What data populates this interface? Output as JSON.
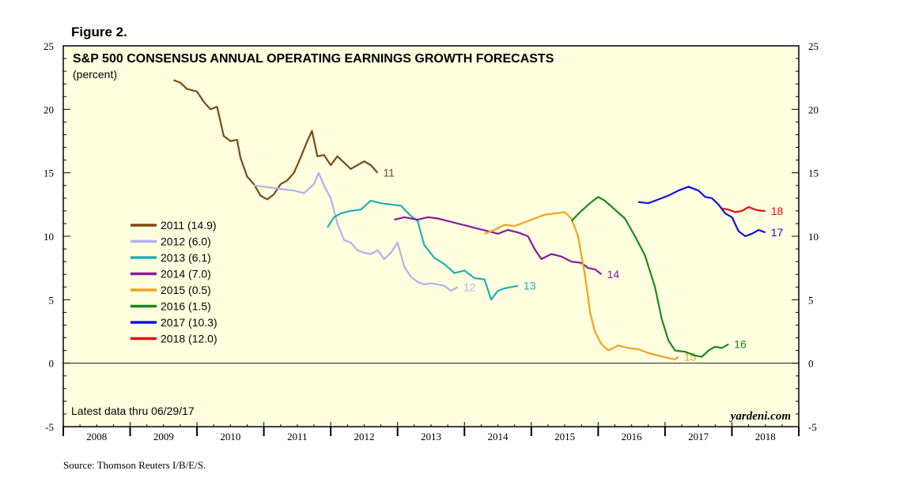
{
  "figure_label": "Figure 2.",
  "source": "Source: Thomson Reuters I/B/E/S.",
  "latest_note": "Latest data thru 06/29/17",
  "brand": "yardeni.com",
  "chart_data": {
    "type": "line",
    "title": "S&P 500 CONSENSUS ANNUAL OPERATING EARNINGS GROWTH FORECASTS",
    "subtitle": "(percent)",
    "xlim": [
      2008,
      2019
    ],
    "ylim": [
      -5,
      25
    ],
    "yticks": [
      -5,
      0,
      5,
      10,
      15,
      20,
      25
    ],
    "xticks": [
      "2008",
      "2009",
      "2010",
      "2011",
      "2012",
      "2013",
      "2014",
      "2015",
      "2016",
      "2017",
      "2018"
    ],
    "zero_line": true,
    "legend_placement": "left",
    "colors": {
      "background": "#ffffe0",
      "2011": "#7b4a12",
      "2012": "#b0b0f0",
      "2013": "#1fb0b0",
      "2014": "#8a1a9a",
      "2015": "#f5a020",
      "2016": "#1a8a1a",
      "2017": "#1010e0",
      "2018": "#e01010"
    },
    "series": [
      {
        "name": "2011 (14.9)",
        "end_label": "11",
        "points": [
          [
            2009.65,
            22.3
          ],
          [
            2009.75,
            22.1
          ],
          [
            2009.85,
            21.6
          ],
          [
            2010.0,
            21.4
          ],
          [
            2010.1,
            20.6
          ],
          [
            2010.2,
            20.0
          ],
          [
            2010.3,
            20.2
          ],
          [
            2010.4,
            17.9
          ],
          [
            2010.5,
            17.5
          ],
          [
            2010.6,
            17.6
          ],
          [
            2010.65,
            16.2
          ],
          [
            2010.75,
            14.7
          ],
          [
            2010.85,
            14.1
          ],
          [
            2010.95,
            13.2
          ],
          [
            2011.05,
            12.9
          ],
          [
            2011.15,
            13.3
          ],
          [
            2011.25,
            14.1
          ],
          [
            2011.35,
            14.4
          ],
          [
            2011.45,
            15.0
          ],
          [
            2011.55,
            16.2
          ],
          [
            2011.65,
            17.5
          ],
          [
            2011.72,
            18.3
          ],
          [
            2011.8,
            16.3
          ],
          [
            2011.9,
            16.4
          ],
          [
            2012.0,
            15.6
          ],
          [
            2012.1,
            16.3
          ],
          [
            2012.2,
            15.8
          ],
          [
            2012.3,
            15.3
          ],
          [
            2012.4,
            15.6
          ],
          [
            2012.5,
            15.9
          ],
          [
            2012.6,
            15.6
          ],
          [
            2012.7,
            15.0
          ]
        ]
      },
      {
        "name": "2012 (6.0)",
        "end_label": "12",
        "points": [
          [
            2010.85,
            14.0
          ],
          [
            2011.0,
            13.9
          ],
          [
            2011.15,
            13.8
          ],
          [
            2011.3,
            13.7
          ],
          [
            2011.45,
            13.6
          ],
          [
            2011.6,
            13.4
          ],
          [
            2011.75,
            14.1
          ],
          [
            2011.82,
            15.0
          ],
          [
            2011.9,
            14.0
          ],
          [
            2012.0,
            13.0
          ],
          [
            2012.1,
            11.0
          ],
          [
            2012.2,
            9.7
          ],
          [
            2012.3,
            9.5
          ],
          [
            2012.4,
            8.9
          ],
          [
            2012.5,
            8.7
          ],
          [
            2012.6,
            8.6
          ],
          [
            2012.7,
            8.9
          ],
          [
            2012.8,
            8.2
          ],
          [
            2012.9,
            8.7
          ],
          [
            2013.0,
            9.5
          ],
          [
            2013.1,
            7.6
          ],
          [
            2013.2,
            6.8
          ],
          [
            2013.3,
            6.4
          ],
          [
            2013.4,
            6.2
          ],
          [
            2013.5,
            6.3
          ],
          [
            2013.6,
            6.2
          ],
          [
            2013.7,
            6.1
          ],
          [
            2013.8,
            5.7
          ],
          [
            2013.9,
            6.0
          ]
        ]
      },
      {
        "name": "2013 (6.1)",
        "end_label": "13",
        "points": [
          [
            2011.95,
            10.7
          ],
          [
            2012.05,
            11.5
          ],
          [
            2012.15,
            11.8
          ],
          [
            2012.3,
            12.0
          ],
          [
            2012.45,
            12.1
          ],
          [
            2012.6,
            12.8
          ],
          [
            2012.75,
            12.6
          ],
          [
            2012.9,
            12.5
          ],
          [
            2013.05,
            12.4
          ],
          [
            2013.2,
            11.6
          ],
          [
            2013.3,
            11.2
          ],
          [
            2013.4,
            9.3
          ],
          [
            2013.55,
            8.3
          ],
          [
            2013.7,
            7.8
          ],
          [
            2013.85,
            7.1
          ],
          [
            2014.0,
            7.3
          ],
          [
            2014.15,
            6.7
          ],
          [
            2014.3,
            6.6
          ],
          [
            2014.4,
            5.0
          ],
          [
            2014.5,
            5.7
          ],
          [
            2014.6,
            5.9
          ],
          [
            2014.7,
            6.0
          ],
          [
            2014.8,
            6.1
          ]
        ]
      },
      {
        "name": "2014 (7.0)",
        "end_label": "14",
        "points": [
          [
            2012.95,
            11.3
          ],
          [
            2013.1,
            11.5
          ],
          [
            2013.3,
            11.3
          ],
          [
            2013.45,
            11.5
          ],
          [
            2013.6,
            11.4
          ],
          [
            2013.75,
            11.2
          ],
          [
            2013.9,
            11.0
          ],
          [
            2014.05,
            10.8
          ],
          [
            2014.2,
            10.6
          ],
          [
            2014.35,
            10.4
          ],
          [
            2014.5,
            10.2
          ],
          [
            2014.65,
            10.5
          ],
          [
            2014.8,
            10.3
          ],
          [
            2014.95,
            10.0
          ],
          [
            2015.05,
            9.0
          ],
          [
            2015.15,
            8.2
          ],
          [
            2015.3,
            8.6
          ],
          [
            2015.45,
            8.4
          ],
          [
            2015.6,
            8.0
          ],
          [
            2015.75,
            7.9
          ],
          [
            2015.85,
            7.5
          ],
          [
            2015.95,
            7.4
          ],
          [
            2016.05,
            7.0
          ]
        ]
      },
      {
        "name": "2015 (0.5)",
        "end_label": "15",
        "points": [
          [
            2014.3,
            10.2
          ],
          [
            2014.45,
            10.5
          ],
          [
            2014.6,
            10.9
          ],
          [
            2014.75,
            10.8
          ],
          [
            2014.9,
            11.1
          ],
          [
            2015.05,
            11.4
          ],
          [
            2015.2,
            11.7
          ],
          [
            2015.35,
            11.8
          ],
          [
            2015.5,
            11.9
          ],
          [
            2015.6,
            11.4
          ],
          [
            2015.7,
            10.0
          ],
          [
            2015.8,
            7.0
          ],
          [
            2015.88,
            4.0
          ],
          [
            2015.95,
            2.5
          ],
          [
            2016.05,
            1.5
          ],
          [
            2016.15,
            1.0
          ],
          [
            2016.3,
            1.4
          ],
          [
            2016.45,
            1.2
          ],
          [
            2016.6,
            1.1
          ],
          [
            2016.75,
            0.8
          ],
          [
            2016.9,
            0.6
          ],
          [
            2017.05,
            0.4
          ],
          [
            2017.15,
            0.3
          ],
          [
            2017.2,
            0.5
          ]
        ]
      },
      {
        "name": "2016 (1.5)",
        "end_label": "16",
        "points": [
          [
            2015.6,
            11.2
          ],
          [
            2015.75,
            12.0
          ],
          [
            2015.9,
            12.7
          ],
          [
            2016.0,
            13.1
          ],
          [
            2016.1,
            12.8
          ],
          [
            2016.25,
            12.1
          ],
          [
            2016.4,
            11.4
          ],
          [
            2016.55,
            10.0
          ],
          [
            2016.7,
            8.5
          ],
          [
            2016.85,
            6.0
          ],
          [
            2016.95,
            3.5
          ],
          [
            2017.05,
            1.8
          ],
          [
            2017.15,
            1.0
          ],
          [
            2017.3,
            0.9
          ],
          [
            2017.45,
            0.6
          ],
          [
            2017.55,
            0.5
          ],
          [
            2017.65,
            1.0
          ],
          [
            2017.75,
            1.3
          ],
          [
            2017.85,
            1.2
          ],
          [
            2017.95,
            1.5
          ]
        ]
      },
      {
        "name": "2017 (10.3)",
        "end_label": "17",
        "points": [
          [
            2016.6,
            12.7
          ],
          [
            2016.75,
            12.6
          ],
          [
            2016.9,
            12.9
          ],
          [
            2017.05,
            13.2
          ],
          [
            2017.2,
            13.6
          ],
          [
            2017.35,
            13.9
          ],
          [
            2017.5,
            13.6
          ],
          [
            2017.6,
            13.1
          ],
          [
            2017.7,
            13.0
          ],
          [
            2017.8,
            12.5
          ],
          [
            2017.9,
            11.8
          ],
          [
            2018.0,
            11.5
          ],
          [
            2018.1,
            10.4
          ],
          [
            2018.2,
            10.0
          ],
          [
            2018.3,
            10.2
          ],
          [
            2018.4,
            10.5
          ],
          [
            2018.5,
            10.3
          ]
        ]
      },
      {
        "name": "2018 (12.0)",
        "end_label": "18",
        "points": [
          [
            2017.85,
            12.2
          ],
          [
            2017.95,
            12.1
          ],
          [
            2018.05,
            11.9
          ],
          [
            2018.15,
            12.0
          ],
          [
            2018.25,
            12.3
          ],
          [
            2018.35,
            12.1
          ],
          [
            2018.45,
            12.0
          ],
          [
            2018.5,
            12.0
          ]
        ]
      }
    ]
  }
}
